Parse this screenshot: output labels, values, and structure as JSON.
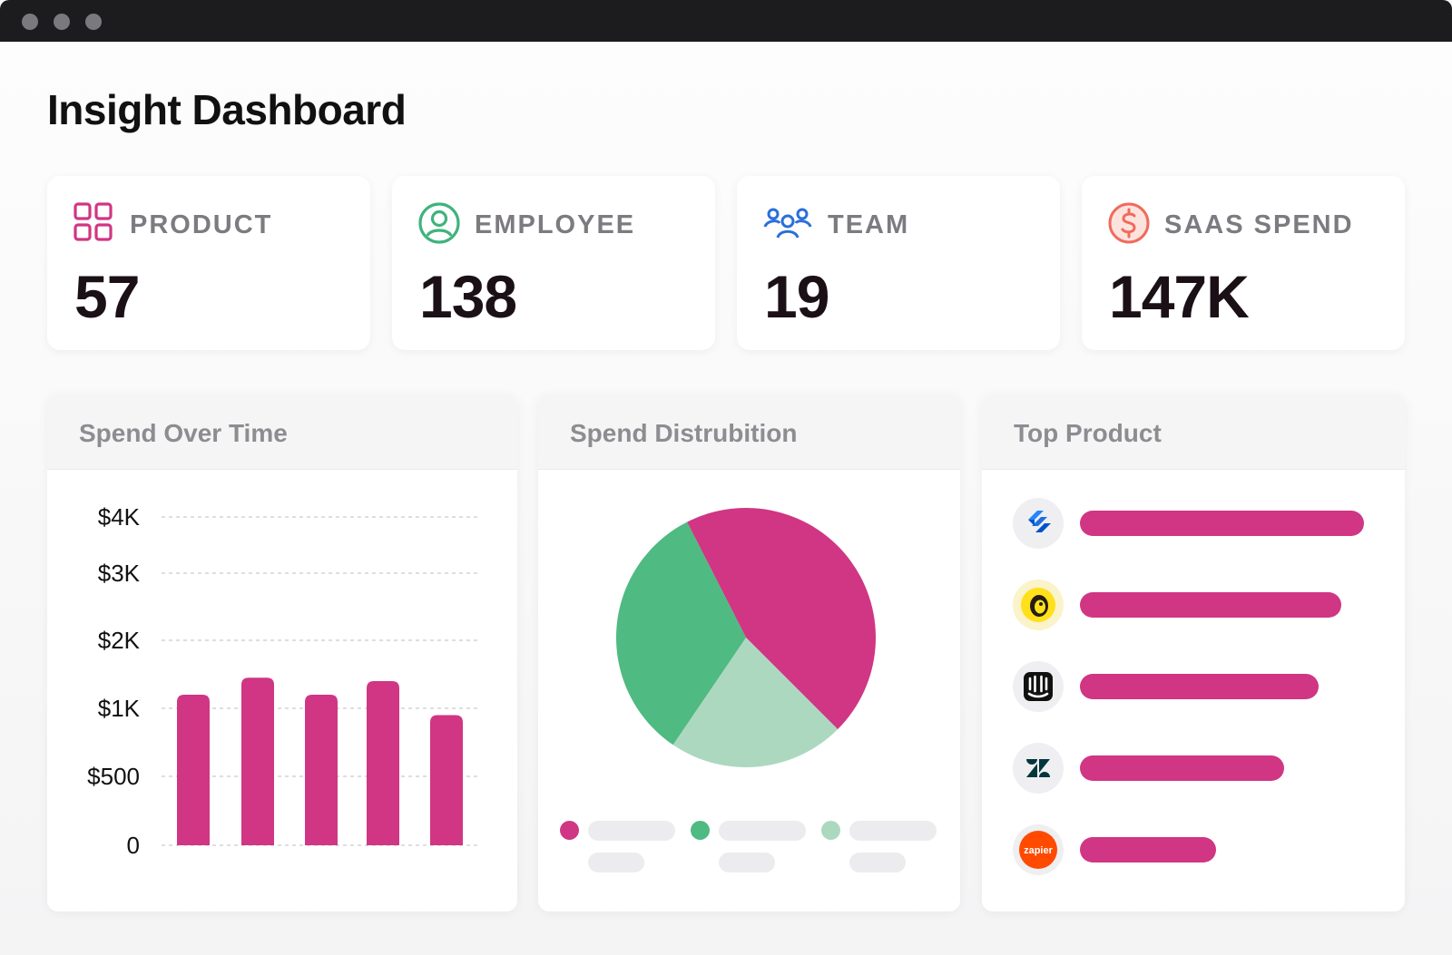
{
  "page": {
    "title": "Insight Dashboard"
  },
  "stats": [
    {
      "label": "PRODUCT",
      "value": "57",
      "icon": "grid-icon",
      "color": "#d03683"
    },
    {
      "label": "EMPLOYEE",
      "value": "138",
      "icon": "user-circle-icon",
      "color": "#3fb37c"
    },
    {
      "label": "TEAM",
      "value": "19",
      "icon": "team-icon",
      "color": "#2a6fdb"
    },
    {
      "label": "SAAS SPEND",
      "value": "147K",
      "icon": "dollar-circle-icon",
      "color": "#f06b5b"
    }
  ],
  "panels": {
    "spend_over_time": {
      "title": "Spend Over Time"
    },
    "spend_distribution": {
      "title": "Spend Distrubition"
    },
    "top_product": {
      "title": "Top Product"
    }
  },
  "chart_data": [
    {
      "type": "bar",
      "title": "Spend Over Time",
      "y_tick_labels": [
        "0",
        "$500",
        "$1K",
        "$2K",
        "$3K",
        "$4K"
      ],
      "categories": [
        "",
        "",
        "",
        "",
        ""
      ],
      "values": [
        2.2,
        2.45,
        2.2,
        2.4,
        1.9
      ],
      "value_scale": "tick index (0=0, 1=$500, 2=$1K, 3=$2K, 4=$3K, 5=$4K)",
      "ylim": [
        0,
        5
      ],
      "bar_color": "#d03683",
      "grid": true
    },
    {
      "type": "pie",
      "title": "Spend Distrubition",
      "slices": [
        {
          "value": 45,
          "color": "#d03683"
        },
        {
          "value": 22,
          "color": "#acd8c0"
        },
        {
          "value": 33,
          "color": "#4fba82"
        }
      ]
    },
    {
      "type": "bar",
      "orientation": "horizontal",
      "title": "Top Product",
      "categories": [
        "Jira",
        "Mailchimp",
        "Intercom",
        "Zendesk",
        "Zapier"
      ],
      "values": [
        100,
        92,
        84,
        72,
        48
      ],
      "bar_color": "#d03683"
    }
  ],
  "legend": [
    {
      "color": "#d03683"
    },
    {
      "color": "#4fba82"
    },
    {
      "color": "#acd8c0"
    }
  ],
  "top_products": [
    {
      "name": "Jira",
      "icon": "jira-logo-icon"
    },
    {
      "name": "Mailchimp",
      "icon": "mailchimp-logo-icon"
    },
    {
      "name": "Intercom",
      "icon": "intercom-logo-icon"
    },
    {
      "name": "Zendesk",
      "icon": "zendesk-logo-icon"
    },
    {
      "name": "Zapier",
      "icon": "zapier-logo-icon",
      "logo_text": "zapier"
    }
  ]
}
